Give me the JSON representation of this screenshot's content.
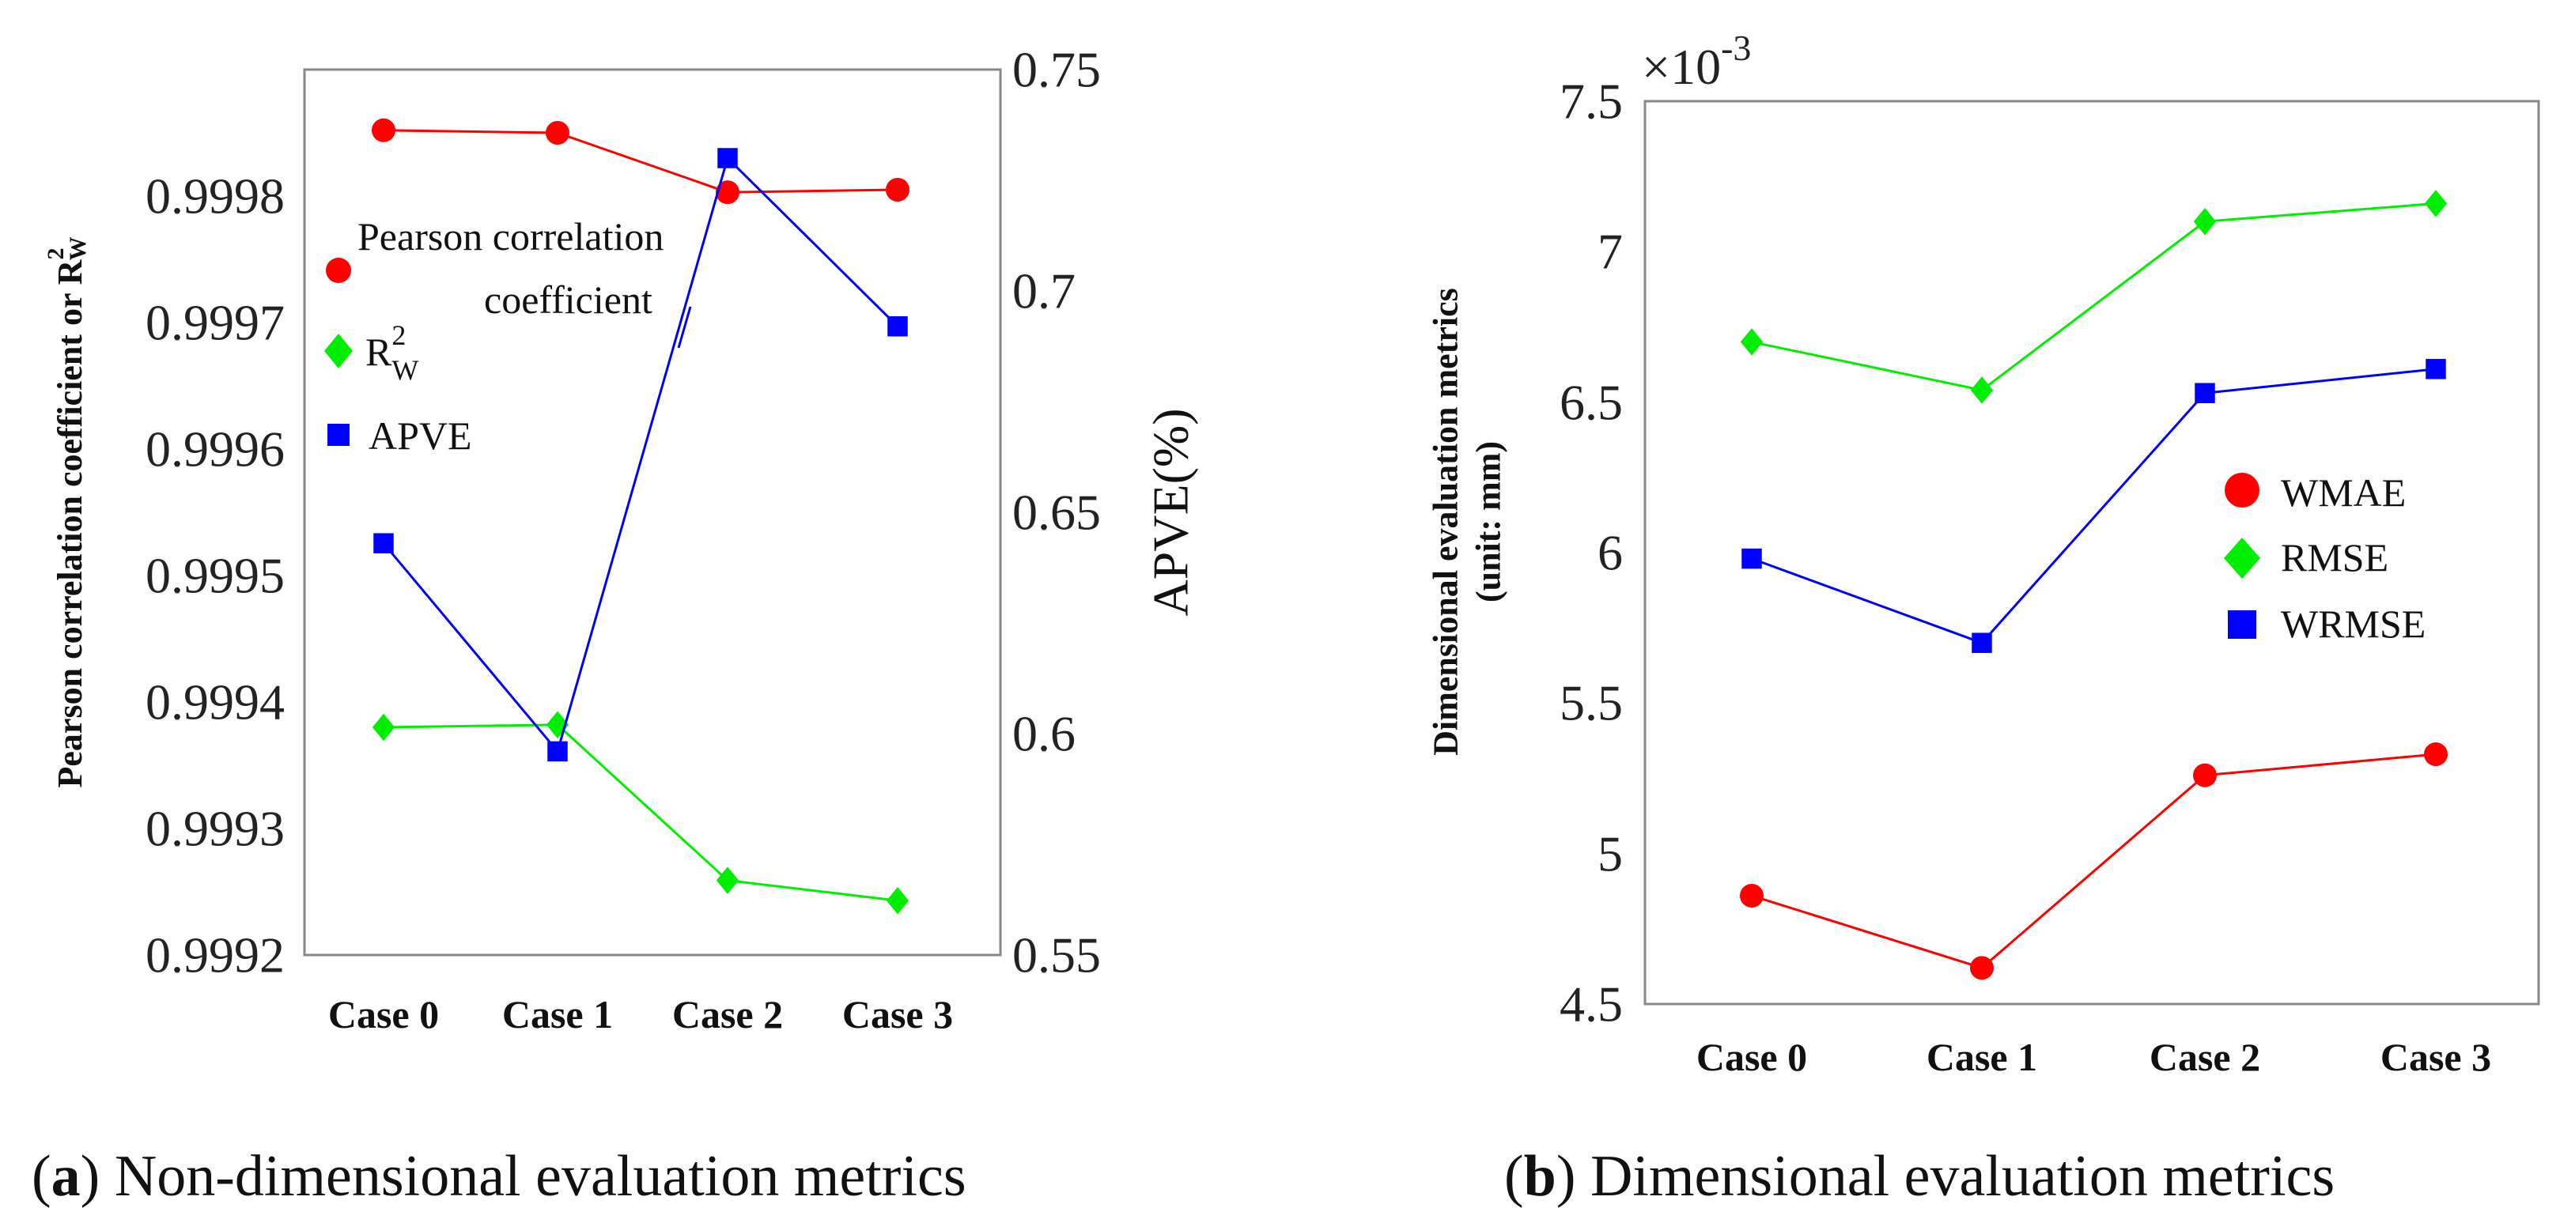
{
  "chart_data": [
    {
      "type": "line",
      "panel": "a",
      "caption_letter": "a",
      "caption_text": "Non-dimensional evaluation metrics",
      "categories": [
        "Case 0",
        "Case 1",
        "Case 2",
        "Case 3"
      ],
      "ylabel_left": "Pearson correlation coefficient or R",
      "ylabel_left_sup": "2",
      "ylabel_left_sub": "W",
      "ylabel_right": "APVE(%)",
      "ylim_left": [
        0.9992,
        0.9999
      ],
      "yticks_left": [
        "0.9992",
        "0.9993",
        "0.9994",
        "0.9995",
        "0.9996",
        "0.9997",
        "0.9998"
      ],
      "ylim_right": [
        0.55,
        0.75
      ],
      "yticks_right": [
        "0.55",
        "0.6",
        "0.65",
        "0.7",
        "0.75"
      ],
      "series": [
        {
          "name": "Pearson correlation coefficient",
          "legend_line1": "Pearson correlation",
          "legend_line2": "coefficient",
          "axis": "left",
          "marker": "circle",
          "color": "#ff0000",
          "values": [
            0.999852,
            0.99985,
            0.999803,
            0.999805
          ]
        },
        {
          "name": "R2W",
          "legend_base": "R",
          "legend_sup": "2",
          "legend_sub": "W",
          "axis": "left",
          "marker": "diamond",
          "color": "#00ee00",
          "values": [
            0.99938,
            0.999382,
            0.999259,
            0.999243
          ]
        },
        {
          "name": "APVE",
          "legend_label": "APVE",
          "axis": "right",
          "marker": "square",
          "color": "#0000ff",
          "values": [
            0.643,
            0.596,
            0.73,
            0.692
          ]
        }
      ]
    },
    {
      "type": "line",
      "panel": "b",
      "caption_letter": "b",
      "caption_text": "Dimensional evaluation metrics",
      "categories": [
        "Case 0",
        "Case 1",
        "Case 2",
        "Case 3"
      ],
      "ylabel_line1": "Dimensional evaluation metrics",
      "ylabel_line2": "(unit: mm)",
      "multiplier_base": "×10",
      "multiplier_exp": "-3",
      "ylim": [
        4.5,
        7.5
      ],
      "yticks": [
        "4.5",
        "5",
        "5.5",
        "6",
        "6.5",
        "7",
        "7.5"
      ],
      "series": [
        {
          "name": "WMAE",
          "marker": "circle",
          "color": "#ff0000",
          "values": [
            4.86,
            4.62,
            5.26,
            5.33
          ]
        },
        {
          "name": "RMSE",
          "marker": "diamond",
          "color": "#00ee00",
          "values": [
            6.7,
            6.54,
            7.1,
            7.16
          ]
        },
        {
          "name": "WRMSE",
          "marker": "square",
          "color": "#0000ff",
          "values": [
            5.98,
            5.7,
            6.53,
            6.61
          ]
        }
      ]
    }
  ]
}
